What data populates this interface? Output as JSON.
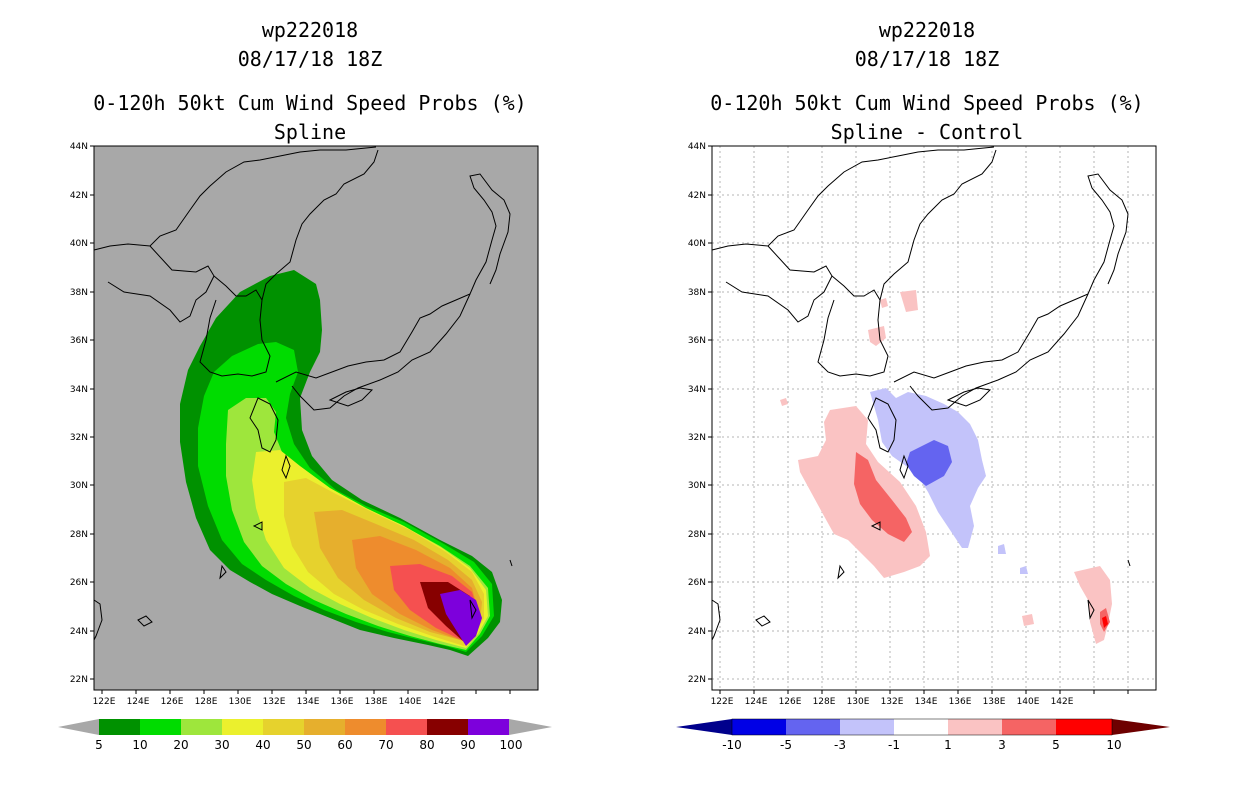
{
  "left": {
    "title_lines": [
      "wp222018",
      "08/17/18 18Z",
      "0-120h 50kt Cum Wind Speed Probs (%)",
      "Spline"
    ],
    "lat_labels": [
      "44N",
      "42N",
      "40N",
      "38N",
      "36N",
      "34N",
      "32N",
      "30N",
      "28N",
      "26N",
      "24N",
      "22N"
    ],
    "lon_labels": [
      "122E",
      "124E",
      "126E",
      "128E",
      "130E",
      "132E",
      "134E",
      "136E",
      "138E",
      "140E",
      "142E"
    ],
    "colorbar": {
      "colors": [
        "#009100",
        "#00dc00",
        "#9ee63c",
        "#ebf02d",
        "#e6d22d",
        "#e6af2d",
        "#ee8c2d",
        "#f55050",
        "#870000",
        "#7d00dc"
      ],
      "labels": [
        "5",
        "10",
        "20",
        "30",
        "40",
        "50",
        "60",
        "70",
        "80",
        "90",
        "100"
      ]
    },
    "background_color": "#a8a8a8"
  },
  "right": {
    "title_lines": [
      "wp222018",
      "08/17/18 18Z",
      "0-120h 50kt Cum Wind Speed Probs (%)",
      "Spline - Control"
    ],
    "lat_labels": [
      "44N",
      "42N",
      "40N",
      "38N",
      "36N",
      "34N",
      "32N",
      "30N",
      "28N",
      "26N",
      "24N",
      "22N"
    ],
    "lon_labels": [
      "122E",
      "124E",
      "126E",
      "128E",
      "130E",
      "132E",
      "134E",
      "136E",
      "138E",
      "140E",
      "142E"
    ],
    "colorbar": {
      "colors": [
        "#0000e6",
        "#6464f0",
        "#c3c3fa",
        "#ffffff",
        "#fac3c3",
        "#f56464",
        "#ff0000"
      ],
      "left_tip": "#00008c",
      "right_tip": "#6e0000",
      "labels": [
        "-10",
        "-5",
        "-3",
        "-1",
        "1",
        "3",
        "5",
        "10"
      ]
    },
    "background_color": "#ffffff"
  }
}
